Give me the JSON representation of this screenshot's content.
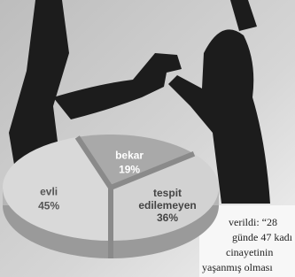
{
  "chart_data": {
    "type": "pie",
    "categories": [
      "evli",
      "bekar",
      "tespit edilemeyen"
    ],
    "values": [
      45,
      19,
      36
    ],
    "value_labels": [
      "45%",
      "19%",
      "36%"
    ],
    "colors": [
      "#d9d9d9",
      "#a9a9a9",
      "#d2d2d2"
    ],
    "annotations": [
      "verildi: “28",
      "günde 47 kadı",
      "cinayetinin",
      "yaşanmış olması"
    ]
  }
}
